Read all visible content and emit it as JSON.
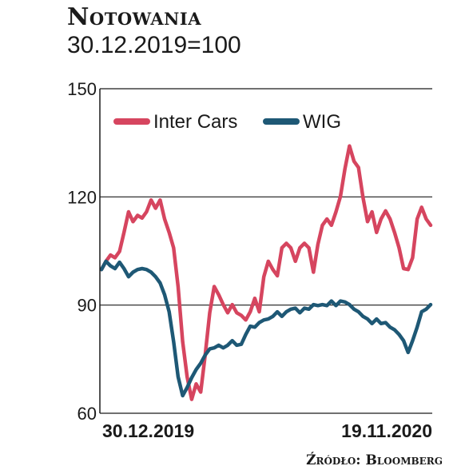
{
  "title": "Notowania",
  "subtitle": "30.12.2019=100",
  "source": "Źródło: Bloomberg",
  "chart_data": {
    "type": "line",
    "ylim": [
      60,
      150
    ],
    "yticks": [
      "150",
      "120",
      "90",
      "60"
    ],
    "xticks": [
      "30.12.2019",
      "19.11.2020"
    ],
    "grid": "horizontal",
    "legend_placement": "top-left",
    "series": [
      {
        "name": "Inter Cars",
        "color": "#d6455f",
        "values": [
          100,
          102,
          104,
          103,
          105,
          110,
          116,
          113,
          115,
          114,
          116,
          119,
          117,
          119,
          114,
          110,
          106,
          95,
          80,
          70,
          64,
          68,
          66,
          76,
          88,
          95,
          93,
          90,
          88,
          90,
          88,
          87,
          86,
          88,
          92,
          88,
          98,
          102,
          100,
          98,
          106,
          107,
          106,
          102,
          106,
          107,
          106,
          99,
          107,
          112,
          114,
          112,
          116,
          120,
          128,
          134,
          130,
          128,
          120,
          113,
          116,
          110,
          114,
          116,
          114,
          110,
          106,
          100,
          100,
          103,
          114,
          117,
          114,
          112
        ]
      },
      {
        "name": "WIG",
        "color": "#1e5875",
        "values": [
          100,
          102,
          101,
          100,
          102,
          100,
          98,
          99,
          100,
          100,
          100,
          99,
          98,
          96,
          93,
          88,
          80,
          70,
          65,
          67,
          70,
          72,
          74,
          76,
          78,
          78,
          79,
          78,
          79,
          80,
          79,
          79,
          82,
          84,
          84,
          85,
          86,
          86,
          87,
          88,
          87,
          88,
          89,
          89,
          88,
          89,
          89,
          90,
          90,
          90,
          90,
          91,
          90,
          91,
          91,
          90,
          89,
          88,
          87,
          86,
          85,
          86,
          85,
          85,
          84,
          83,
          82,
          80,
          77,
          80,
          84,
          88,
          89,
          90
        ]
      }
    ]
  }
}
